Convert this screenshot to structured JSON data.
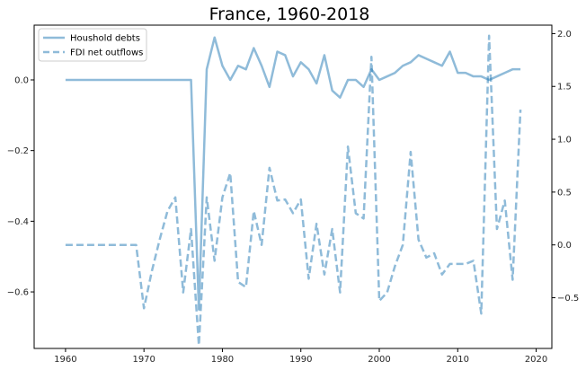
{
  "chart_data": {
    "type": "line",
    "title": "France, 1960-2018",
    "xlabel": "",
    "ylabel_left": "",
    "ylabel_right": "",
    "xlim": [
      1956,
      2022
    ],
    "ylim_left": [
      -0.76,
      0.155
    ],
    "ylim_right": [
      -0.98,
      2.08
    ],
    "x_ticks": [
      1960,
      1970,
      1980,
      1990,
      2000,
      2010,
      2020
    ],
    "y_ticks_left": [
      0.0,
      -0.2,
      -0.4,
      -0.6
    ],
    "y_ticks_right": [
      2.0,
      1.5,
      1.0,
      0.5,
      0.0,
      -0.5
    ],
    "legend_position": "top-left",
    "grid": false,
    "series": [
      {
        "name": "Houshold debts",
        "axis": "left",
        "style": "solid",
        "color": "#1f77b4",
        "x": [
          1960,
          1961,
          1962,
          1963,
          1964,
          1965,
          1966,
          1967,
          1968,
          1969,
          1970,
          1971,
          1972,
          1973,
          1974,
          1975,
          1976,
          1977,
          1978,
          1979,
          1980,
          1981,
          1982,
          1983,
          1984,
          1985,
          1986,
          1987,
          1988,
          1989,
          1990,
          1991,
          1992,
          1993,
          1994,
          1995,
          1996,
          1997,
          1998,
          1999,
          2000,
          2001,
          2002,
          2003,
          2004,
          2005,
          2006,
          2007,
          2008,
          2009,
          2010,
          2011,
          2012,
          2013,
          2014,
          2015,
          2016,
          2017,
          2018
        ],
        "y": [
          0,
          0,
          0,
          0,
          0,
          0,
          0,
          0,
          0,
          0,
          0,
          0,
          0,
          0,
          0,
          0,
          0,
          -0.65,
          0.03,
          0.12,
          0.04,
          0.0,
          0.04,
          0.03,
          0.09,
          0.04,
          -0.02,
          0.08,
          0.07,
          0.01,
          0.05,
          0.03,
          -0.01,
          0.07,
          -0.03,
          -0.05,
          0.0,
          0.0,
          -0.02,
          0.03,
          0.0,
          0.01,
          0.02,
          0.04,
          0.05,
          0.07,
          0.06,
          0.05,
          0.04,
          0.08,
          0.02,
          0.02,
          0.01,
          0.01,
          0.0,
          0.01,
          0.02,
          0.03,
          0.03
        ]
      },
      {
        "name": "FDI net outflows",
        "axis": "right",
        "style": "dashed",
        "color": "#1f77b4",
        "x": [
          1960,
          1961,
          1962,
          1963,
          1964,
          1965,
          1966,
          1967,
          1968,
          1969,
          1970,
          1971,
          1972,
          1973,
          1974,
          1975,
          1976,
          1977,
          1978,
          1979,
          1980,
          1981,
          1982,
          1983,
          1984,
          1985,
          1986,
          1987,
          1988,
          1989,
          1990,
          1991,
          1992,
          1993,
          1994,
          1995,
          1996,
          1997,
          1998,
          1999,
          2000,
          2001,
          2002,
          2003,
          2004,
          2005,
          2006,
          2007,
          2008,
          2009,
          2010,
          2011,
          2012,
          2013,
          2014,
          2015,
          2016,
          2017,
          2018
        ],
        "y": [
          0.0,
          0.0,
          0.0,
          0.0,
          0.0,
          0.0,
          0.0,
          0.0,
          0.0,
          0.0,
          -0.6,
          -0.25,
          0.05,
          0.32,
          0.45,
          -0.45,
          0.15,
          -0.95,
          0.45,
          -0.15,
          0.45,
          0.68,
          -0.35,
          -0.4,
          0.32,
          0.0,
          0.73,
          0.42,
          0.43,
          0.3,
          0.43,
          -0.32,
          0.2,
          -0.28,
          0.15,
          -0.45,
          0.93,
          0.3,
          0.25,
          1.78,
          -0.53,
          -0.45,
          -0.2,
          0.0,
          0.88,
          0.05,
          -0.12,
          -0.08,
          -0.28,
          -0.18,
          -0.18,
          -0.18,
          -0.15,
          -0.65,
          1.98,
          0.15,
          0.42,
          -0.33,
          1.28
        ]
      }
    ]
  }
}
